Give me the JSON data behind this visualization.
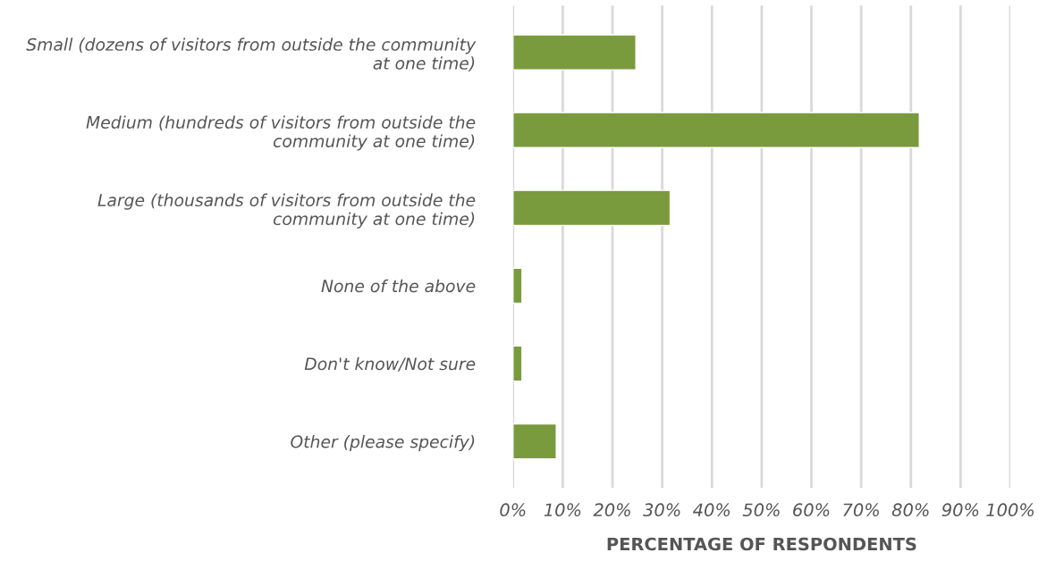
{
  "chart_data": {
    "type": "bar",
    "orientation": "horizontal",
    "xlabel": "PERCENTAGE OF RESPONDENTS",
    "categories": [
      "Small (dozens of visitors from outside the community\nat one time)",
      "Medium (hundreds of visitors from outside the\ncommunity at one time)",
      "Large (thousands of visitors from outside the\ncommunity at one time)",
      "None of the above",
      "Don't know/Not sure",
      "Other (please specify)"
    ],
    "values": [
      24.7,
      81.7,
      31.6,
      1.8,
      1.8,
      8.7
    ],
    "color": "#7a9a3e",
    "xlim": [
      0,
      100
    ],
    "xticks": [
      {
        "value": 0,
        "label": "0%"
      },
      {
        "value": 10,
        "label": "10%"
      },
      {
        "value": 20,
        "label": "20%"
      },
      {
        "value": 30,
        "label": "30%"
      },
      {
        "value": 40,
        "label": "40%"
      },
      {
        "value": 50,
        "label": "50%"
      },
      {
        "value": 60,
        "label": "60%"
      },
      {
        "value": 70,
        "label": "70%"
      },
      {
        "value": 80,
        "label": "80%"
      },
      {
        "value": 90,
        "label": "90%"
      },
      {
        "value": 100,
        "label": "100%"
      }
    ],
    "grid": "x",
    "legend": false
  }
}
